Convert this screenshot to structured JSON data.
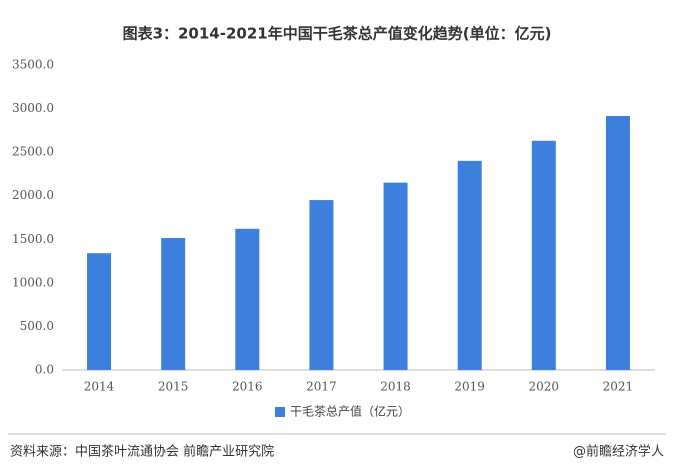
{
  "chart_data": {
    "type": "bar",
    "title": "图表3：2014-2021年中国干毛茶总产值变化趋势(单位：亿元)",
    "categories": [
      "2014",
      "2015",
      "2016",
      "2017",
      "2018",
      "2019",
      "2020",
      "2021"
    ],
    "series": [
      {
        "name": "干毛茶总产值（亿元）",
        "color": "#3c7fdc",
        "values": [
          1340,
          1515,
          1620,
          1950,
          2150,
          2400,
          2630,
          2915
        ]
      }
    ],
    "ylim": [
      0,
      3500
    ],
    "yticks": [
      {
        "value": 0,
        "label": "0.0"
      },
      {
        "value": 500,
        "label": "500.0"
      },
      {
        "value": 1000,
        "label": "1000.0"
      },
      {
        "value": 1500,
        "label": "1500.0"
      },
      {
        "value": 2000,
        "label": "2000.0"
      },
      {
        "value": 2500,
        "label": "2500.0"
      },
      {
        "value": 3000,
        "label": "3000.0"
      },
      {
        "value": 3500,
        "label": "3500.0"
      }
    ],
    "grid": false,
    "legend": "bottom",
    "source": "资料来源：中国茶叶流通协会 前瞻产业研究院",
    "credit": "@前瞻经济学人"
  }
}
